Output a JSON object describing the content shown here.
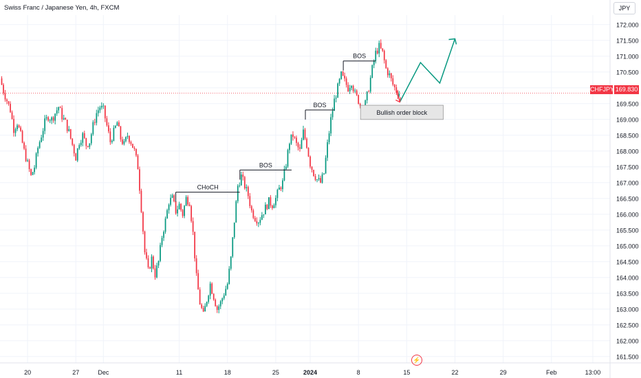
{
  "header": {
    "title": "Swiss Franc / Japanese Yen, 4h, FXCM",
    "currency": "JPY"
  },
  "price_badge": {
    "symbol": "CHFJPY",
    "value": "169.830"
  },
  "lightning_icon": "lightning-icon",
  "colors": {
    "up": "#089981",
    "down": "#f23645",
    "projection": "#089981",
    "price_line": "#f23645",
    "order_block_fill": "#e6e6e6"
  },
  "chart_data": {
    "type": "candlestick",
    "y_ticks": [
      "172.000",
      "171.500",
      "171.000",
      "170.500",
      "170.000",
      "169.500",
      "169.000",
      "168.500",
      "168.000",
      "167.500",
      "167.000",
      "166.500",
      "166.000",
      "165.500",
      "165.000",
      "164.500",
      "164.000",
      "163.500",
      "163.000",
      "162.500",
      "162.000",
      "161.500"
    ],
    "ylim": [
      161.3,
      172.3
    ],
    "x_ticks": [
      {
        "label": "20",
        "x": 20
      },
      {
        "label": "27",
        "x": 27
      },
      {
        "label": "Dec",
        "x": 31
      },
      {
        "label": "11",
        "x": 42
      },
      {
        "label": "18",
        "x": 49
      },
      {
        "label": "25",
        "x": 56
      },
      {
        "label": "2024",
        "x": 61
      },
      {
        "label": "8",
        "x": 68
      },
      {
        "label": "15",
        "x": 75
      },
      {
        "label": "22",
        "x": 82
      },
      {
        "label": "29",
        "x": 89
      },
      {
        "label": "Feb",
        "x": 96
      },
      {
        "label": "13:00",
        "x": 102
      }
    ],
    "xlim": [
      16,
      104.5
    ],
    "last_price": 169.83,
    "candle_path": [
      {
        "x": 16.0,
        "y": 170.3
      },
      {
        "x": 16.5,
        "y": 169.9
      },
      {
        "x": 17.0,
        "y": 169.6
      },
      {
        "x": 17.5,
        "y": 169.3
      },
      {
        "x": 18.0,
        "y": 168.7
      },
      {
        "x": 18.5,
        "y": 168.9
      },
      {
        "x": 19.0,
        "y": 168.5
      },
      {
        "x": 19.5,
        "y": 168.0
      },
      {
        "x": 20.0,
        "y": 167.6
      },
      {
        "x": 20.5,
        "y": 167.2
      },
      {
        "x": 21.0,
        "y": 167.5
      },
      {
        "x": 21.5,
        "y": 168.1
      },
      {
        "x": 22.0,
        "y": 168.5
      },
      {
        "x": 22.5,
        "y": 168.9
      },
      {
        "x": 23.0,
        "y": 169.1
      },
      {
        "x": 23.5,
        "y": 169.0
      },
      {
        "x": 24.0,
        "y": 169.2
      },
      {
        "x": 24.5,
        "y": 169.4
      },
      {
        "x": 25.0,
        "y": 169.1
      },
      {
        "x": 25.5,
        "y": 168.9
      },
      {
        "x": 26.0,
        "y": 168.6
      },
      {
        "x": 26.5,
        "y": 168.2
      },
      {
        "x": 27.0,
        "y": 167.8
      },
      {
        "x": 27.5,
        "y": 168.3
      },
      {
        "x": 28.0,
        "y": 168.5
      },
      {
        "x": 28.5,
        "y": 168.2
      },
      {
        "x": 29.0,
        "y": 168.3
      },
      {
        "x": 29.5,
        "y": 168.8
      },
      {
        "x": 30.0,
        "y": 169.2
      },
      {
        "x": 30.5,
        "y": 169.4
      },
      {
        "x": 31.0,
        "y": 169.3
      },
      {
        "x": 31.5,
        "y": 168.8
      },
      {
        "x": 32.0,
        "y": 168.3
      },
      {
        "x": 32.5,
        "y": 168.6
      },
      {
        "x": 33.0,
        "y": 168.9
      },
      {
        "x": 33.5,
        "y": 168.4
      },
      {
        "x": 34.0,
        "y": 168.2
      },
      {
        "x": 34.5,
        "y": 168.5
      },
      {
        "x": 35.0,
        "y": 168.3
      },
      {
        "x": 35.5,
        "y": 168.0
      },
      {
        "x": 36.0,
        "y": 167.5
      },
      {
        "x": 36.5,
        "y": 166.2
      },
      {
        "x": 37.0,
        "y": 164.8
      },
      {
        "x": 37.5,
        "y": 164.2
      },
      {
        "x": 38.0,
        "y": 164.6
      },
      {
        "x": 38.5,
        "y": 164.1
      },
      {
        "x": 39.0,
        "y": 164.5
      },
      {
        "x": 39.5,
        "y": 165.3
      },
      {
        "x": 40.0,
        "y": 165.8
      },
      {
        "x": 40.5,
        "y": 166.4
      },
      {
        "x": 41.0,
        "y": 166.5
      },
      {
        "x": 41.5,
        "y": 166.1
      },
      {
        "x": 42.0,
        "y": 166.3
      },
      {
        "x": 42.5,
        "y": 166.0
      },
      {
        "x": 43.0,
        "y": 166.5
      },
      {
        "x": 43.5,
        "y": 166.4
      },
      {
        "x": 44.0,
        "y": 165.4
      },
      {
        "x": 44.5,
        "y": 164.0
      },
      {
        "x": 45.0,
        "y": 163.2
      },
      {
        "x": 45.5,
        "y": 162.8
      },
      {
        "x": 46.0,
        "y": 163.3
      },
      {
        "x": 46.5,
        "y": 163.8
      },
      {
        "x": 47.0,
        "y": 163.4
      },
      {
        "x": 47.5,
        "y": 163.0
      },
      {
        "x": 48.0,
        "y": 163.2
      },
      {
        "x": 48.5,
        "y": 163.5
      },
      {
        "x": 49.0,
        "y": 163.8
      },
      {
        "x": 49.5,
        "y": 164.6
      },
      {
        "x": 50.0,
        "y": 165.8
      },
      {
        "x": 50.5,
        "y": 166.9
      },
      {
        "x": 51.0,
        "y": 167.2
      },
      {
        "x": 51.5,
        "y": 166.9
      },
      {
        "x": 52.0,
        "y": 166.6
      },
      {
        "x": 52.5,
        "y": 166.1
      },
      {
        "x": 53.0,
        "y": 165.9
      },
      {
        "x": 53.5,
        "y": 165.8
      },
      {
        "x": 54.0,
        "y": 166.0
      },
      {
        "x": 54.5,
        "y": 166.2
      },
      {
        "x": 55.0,
        "y": 166.4
      },
      {
        "x": 55.5,
        "y": 166.3
      },
      {
        "x": 56.0,
        "y": 166.5
      },
      {
        "x": 56.5,
        "y": 166.8
      },
      {
        "x": 57.0,
        "y": 167.0
      },
      {
        "x": 57.5,
        "y": 167.6
      },
      {
        "x": 58.0,
        "y": 168.3
      },
      {
        "x": 58.5,
        "y": 168.5
      },
      {
        "x": 59.0,
        "y": 168.2
      },
      {
        "x": 59.5,
        "y": 168.0
      },
      {
        "x": 60.0,
        "y": 168.6
      },
      {
        "x": 60.5,
        "y": 168.2
      },
      {
        "x": 61.0,
        "y": 167.6
      },
      {
        "x": 61.5,
        "y": 167.3
      },
      {
        "x": 62.0,
        "y": 167.1
      },
      {
        "x": 62.5,
        "y": 167.0
      },
      {
        "x": 63.0,
        "y": 167.3
      },
      {
        "x": 63.5,
        "y": 168.2
      },
      {
        "x": 64.0,
        "y": 169.0
      },
      {
        "x": 64.5,
        "y": 169.6
      },
      {
        "x": 65.0,
        "y": 170.0
      },
      {
        "x": 65.5,
        "y": 170.4
      },
      {
        "x": 66.0,
        "y": 170.2
      },
      {
        "x": 66.5,
        "y": 170.0
      },
      {
        "x": 67.0,
        "y": 170.2
      },
      {
        "x": 67.5,
        "y": 169.8
      },
      {
        "x": 68.0,
        "y": 169.6
      },
      {
        "x": 68.5,
        "y": 169.3
      },
      {
        "x": 69.0,
        "y": 169.5
      },
      {
        "x": 69.5,
        "y": 170.0
      },
      {
        "x": 70.0,
        "y": 170.6
      },
      {
        "x": 70.5,
        "y": 171.1
      },
      {
        "x": 71.0,
        "y": 171.3
      },
      {
        "x": 71.5,
        "y": 171.1
      },
      {
        "x": 72.0,
        "y": 170.6
      },
      {
        "x": 72.5,
        "y": 170.4
      },
      {
        "x": 73.0,
        "y": 170.1
      },
      {
        "x": 73.5,
        "y": 169.9
      },
      {
        "x": 73.9,
        "y": 169.83
      }
    ],
    "annotations": [
      {
        "label": "CHoCH",
        "x1": 41.5,
        "x2": 50.8,
        "y": 166.7
      },
      {
        "label": "BOS",
        "x1": 50.8,
        "x2": 58.3,
        "y": 167.4
      },
      {
        "label": "BOS",
        "x1": 60.3,
        "x2": 64.5,
        "y": 169.3
      },
      {
        "label": "BOS",
        "x1": 65.8,
        "x2": 70.5,
        "y": 170.85
      }
    ],
    "order_block": {
      "label": "Bullish order block",
      "x1": 68.3,
      "x2": 80.3,
      "y_top": 169.45,
      "y_bottom": 169.0
    },
    "projection": {
      "points": [
        [
          73.6,
          169.9
        ],
        [
          74.0,
          169.55
        ],
        [
          77.0,
          170.8
        ],
        [
          79.8,
          170.15
        ],
        [
          82.0,
          171.55
        ]
      ]
    }
  }
}
